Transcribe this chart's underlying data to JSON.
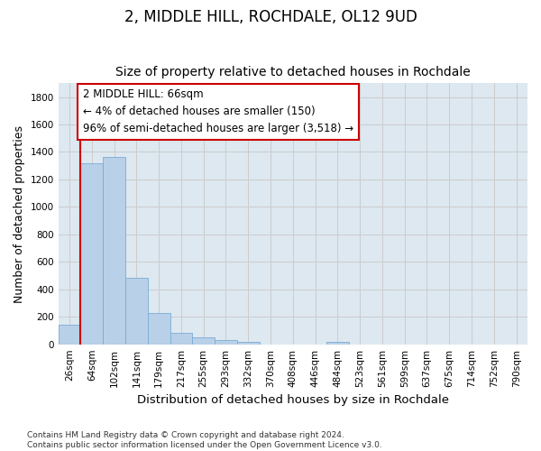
{
  "title1": "2, MIDDLE HILL, ROCHDALE, OL12 9UD",
  "title2": "Size of property relative to detached houses in Rochdale",
  "xlabel": "Distribution of detached houses by size in Rochdale",
  "ylabel": "Number of detached properties",
  "bar_labels": [
    "26sqm",
    "64sqm",
    "102sqm",
    "141sqm",
    "179sqm",
    "217sqm",
    "255sqm",
    "293sqm",
    "332sqm",
    "370sqm",
    "408sqm",
    "446sqm",
    "484sqm",
    "523sqm",
    "561sqm",
    "599sqm",
    "637sqm",
    "675sqm",
    "714sqm",
    "752sqm",
    "790sqm"
  ],
  "bar_values": [
    140,
    1315,
    1365,
    485,
    230,
    85,
    50,
    30,
    15,
    0,
    0,
    0,
    20,
    0,
    0,
    0,
    0,
    0,
    0,
    0,
    0
  ],
  "bar_color": "#b8d0e8",
  "bar_edge_color": "#7aadd4",
  "vline_color": "#cc0000",
  "annotation_text": "2 MIDDLE HILL: 66sqm\n← 4% of detached houses are smaller (150)\n96% of semi-detached houses are larger (3,518) →",
  "annotation_box_color": "#ffffff",
  "annotation_box_edge": "#cc0000",
  "ylim": [
    0,
    1900
  ],
  "yticks": [
    0,
    200,
    400,
    600,
    800,
    1000,
    1200,
    1400,
    1600,
    1800
  ],
  "grid_color": "#cccccc",
  "bg_color": "#dde8f0",
  "fig_bg_color": "#ffffff",
  "footer": "Contains HM Land Registry data © Crown copyright and database right 2024.\nContains public sector information licensed under the Open Government Licence v3.0.",
  "title1_fontsize": 12,
  "title2_fontsize": 10,
  "xlabel_fontsize": 9.5,
  "ylabel_fontsize": 9,
  "tick_fontsize": 7.5,
  "annotation_fontsize": 8.5,
  "footer_fontsize": 6.5
}
